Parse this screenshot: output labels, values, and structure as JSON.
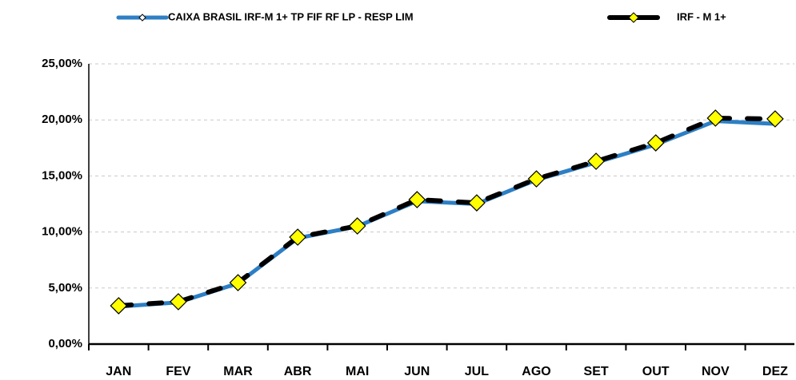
{
  "chart_data": {
    "type": "line",
    "categories": [
      "JAN",
      "FEV",
      "MAR",
      "ABR",
      "MAI",
      "JUN",
      "JUL",
      "AGO",
      "SET",
      "OUT",
      "NOV",
      "DEZ"
    ],
    "series": [
      {
        "name": "CAIXA BRASIL IRF-M 1+ TP FIF RF LP - RESP LIM",
        "color": "#2e7fc4",
        "values": [
          3.35,
          3.72,
          5.42,
          9.45,
          10.5,
          12.75,
          12.5,
          14.65,
          16.2,
          17.8,
          19.9,
          19.65
        ]
      },
      {
        "name": "IRF - M 1+",
        "color": "#000000",
        "marker_color": "#ffff00",
        "values": [
          3.42,
          3.78,
          5.48,
          9.54,
          10.54,
          12.89,
          12.6,
          14.74,
          16.31,
          17.95,
          20.16,
          20.09
        ]
      }
    ],
    "ylim": [
      0,
      25
    ],
    "yticks": [
      {
        "value": 0,
        "label": "0,00%"
      },
      {
        "value": 5,
        "label": "5,00%"
      },
      {
        "value": 10,
        "label": "10,00%"
      },
      {
        "value": 15,
        "label": "15,00%"
      },
      {
        "value": 20,
        "label": "20,00%"
      },
      {
        "value": 25,
        "label": "25,00%"
      }
    ],
    "grid": true,
    "legend": "top"
  }
}
